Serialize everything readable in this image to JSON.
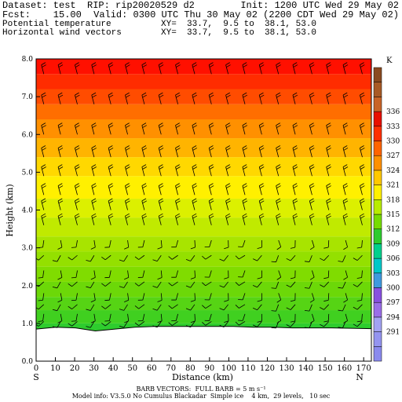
{
  "header": {
    "dataset": "Dataset: test  RIP: rip20020529 d2",
    "init": "Init: 1200 UTC Wed 29 May 02",
    "fcst": "Fcst:    15.00",
    "valid": "Valid: 0300 UTC Thu 30 May 02 (2200 CDT Wed 29 May 02)",
    "field1": "Potential temperature",
    "xy1": "XY=  33.7,  9.5 to  38.1, 53.0",
    "field2": "Horizontal wind vectors",
    "xy2": "XY=  33.7,  9.5 to  38.1, 53.0"
  },
  "footer": {
    "barb_note": "BARB VECTORS:  FULL BARB = 5 m s⁻¹",
    "model_info": "Model info: V3.5.0 No Cumulus Blackadar  Simple ice    4 km,  29 levels,   10 sec"
  },
  "chart_data": {
    "type": "heatmap",
    "title": "Potential temperature",
    "overlay": "Horizontal wind vectors (barbs)",
    "xlabel": "Distance (km)",
    "ylabel": "Height (km)",
    "xlim": [
      0,
      174
    ],
    "ylim": [
      0,
      8
    ],
    "x_ticks": [
      0,
      10,
      20,
      30,
      40,
      50,
      60,
      70,
      80,
      90,
      100,
      110,
      120,
      130,
      140,
      150,
      160,
      170
    ],
    "y_ticks": [
      "0.0",
      "1.0",
      "2.0",
      "3.0",
      "4.0",
      "5.0",
      "6.0",
      "7.0",
      "8.0"
    ],
    "x_end_labels": {
      "left": "S",
      "right": "N"
    },
    "colorbar": {
      "unit": "K",
      "labels": [
        291,
        294,
        297,
        300,
        303,
        306,
        309,
        312,
        315,
        318,
        321,
        324,
        327,
        330,
        333,
        336
      ],
      "colors": [
        "#8a8aee",
        "#9494f0",
        "#a2a2f2",
        "#9a6ee8",
        "#8850e0",
        "#3f9adf",
        "#00c8c8",
        "#00d08c",
        "#2ecc2e",
        "#76dc00",
        "#b8ec00",
        "#fff000",
        "#ffc800",
        "#ff9000",
        "#ff6400",
        "#ff3000",
        "#e81000",
        "#c86428",
        "#a85a26",
        "#8a4a20"
      ]
    },
    "terrain_km_approx": [
      0.85,
      0.9,
      0.88,
      0.8,
      0.85,
      0.9,
      0.92,
      0.92,
      0.92,
      0.92,
      0.92,
      0.9,
      0.9,
      0.88,
      0.88,
      0.88,
      0.87,
      0.86
    ]
  }
}
